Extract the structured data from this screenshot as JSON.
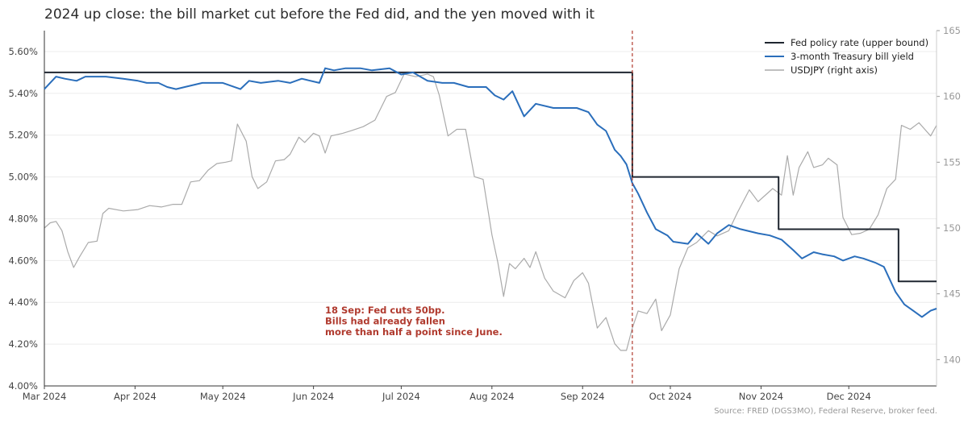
{
  "title": "2024 up close: the bill market cut before the Fed did, and the yen moved with it",
  "source": "Source: FRED (DGS3MO), Federal Reserve, broker feed.",
  "chart_data": {
    "type": "line",
    "x_ticks": [
      "Mar 2024",
      "Apr 2024",
      "May 2024",
      "Jun 2024",
      "Jul 2024",
      "Aug 2024",
      "Sep 2024",
      "Oct 2024",
      "Nov 2024",
      "Dec 2024"
    ],
    "x_range": [
      "2024-03-01",
      "2024-12-31"
    ],
    "left_axis": {
      "ticks": [
        "4.00%",
        "4.20%",
        "4.40%",
        "4.60%",
        "4.80%",
        "5.00%",
        "5.20%",
        "5.40%",
        "5.60%"
      ],
      "ylim": [
        4.0,
        5.7
      ]
    },
    "right_axis": {
      "ticks": [
        "140",
        "145",
        "150",
        "155",
        "160",
        "165"
      ],
      "ylim": [
        138,
        165
      ]
    },
    "grid": "horizontal",
    "legend_position": "top-right",
    "series": [
      {
        "name": "Fed policy rate (upper bound)",
        "axis": "left",
        "color": "#1f2630",
        "style": "step",
        "points": [
          [
            "2024-03-01",
            5.5
          ],
          [
            "2024-09-18",
            5.0
          ],
          [
            "2024-11-07",
            4.75
          ],
          [
            "2024-12-18",
            4.5
          ],
          [
            "2024-12-31",
            4.5
          ]
        ]
      },
      {
        "name": "3-month Treasury bill yield",
        "axis": "left",
        "color": "#2a6ebb",
        "style": "line",
        "points": [
          [
            "2024-03-01",
            5.42
          ],
          [
            "2024-03-05",
            5.48
          ],
          [
            "2024-03-08",
            5.47
          ],
          [
            "2024-03-12",
            5.46
          ],
          [
            "2024-03-15",
            5.48
          ],
          [
            "2024-03-22",
            5.48
          ],
          [
            "2024-03-28",
            5.47
          ],
          [
            "2024-04-02",
            5.46
          ],
          [
            "2024-04-05",
            5.45
          ],
          [
            "2024-04-09",
            5.45
          ],
          [
            "2024-04-12",
            5.43
          ],
          [
            "2024-04-15",
            5.42
          ],
          [
            "2024-04-18",
            5.43
          ],
          [
            "2024-04-24",
            5.45
          ],
          [
            "2024-05-01",
            5.45
          ],
          [
            "2024-05-07",
            5.42
          ],
          [
            "2024-05-10",
            5.46
          ],
          [
            "2024-05-14",
            5.45
          ],
          [
            "2024-05-20",
            5.46
          ],
          [
            "2024-05-24",
            5.45
          ],
          [
            "2024-05-28",
            5.47
          ],
          [
            "2024-06-03",
            5.45
          ],
          [
            "2024-06-05",
            5.52
          ],
          [
            "2024-06-08",
            5.51
          ],
          [
            "2024-06-12",
            5.52
          ],
          [
            "2024-06-17",
            5.52
          ],
          [
            "2024-06-21",
            5.51
          ],
          [
            "2024-06-27",
            5.52
          ],
          [
            "2024-07-01",
            5.49
          ],
          [
            "2024-07-05",
            5.5
          ],
          [
            "2024-07-10",
            5.46
          ],
          [
            "2024-07-15",
            5.45
          ],
          [
            "2024-07-19",
            5.45
          ],
          [
            "2024-07-24",
            5.43
          ],
          [
            "2024-07-30",
            5.43
          ],
          [
            "2024-08-02",
            5.39
          ],
          [
            "2024-08-05",
            5.37
          ],
          [
            "2024-08-08",
            5.41
          ],
          [
            "2024-08-12",
            5.29
          ],
          [
            "2024-08-16",
            5.35
          ],
          [
            "2024-08-22",
            5.33
          ],
          [
            "2024-08-26",
            5.33
          ],
          [
            "2024-08-30",
            5.33
          ],
          [
            "2024-09-03",
            5.31
          ],
          [
            "2024-09-06",
            5.25
          ],
          [
            "2024-09-09",
            5.22
          ],
          [
            "2024-09-12",
            5.13
          ],
          [
            "2024-09-14",
            5.1
          ],
          [
            "2024-09-16",
            5.06
          ],
          [
            "2024-09-18",
            4.97
          ],
          [
            "2024-09-20",
            4.92
          ],
          [
            "2024-09-23",
            4.83
          ],
          [
            "2024-09-26",
            4.75
          ],
          [
            "2024-09-30",
            4.72
          ],
          [
            "2024-10-02",
            4.69
          ],
          [
            "2024-10-07",
            4.68
          ],
          [
            "2024-10-10",
            4.73
          ],
          [
            "2024-10-14",
            4.68
          ],
          [
            "2024-10-17",
            4.73
          ],
          [
            "2024-10-21",
            4.77
          ],
          [
            "2024-10-25",
            4.75
          ],
          [
            "2024-10-31",
            4.73
          ],
          [
            "2024-11-04",
            4.72
          ],
          [
            "2024-11-08",
            4.7
          ],
          [
            "2024-11-12",
            4.65
          ],
          [
            "2024-11-15",
            4.61
          ],
          [
            "2024-11-19",
            4.64
          ],
          [
            "2024-11-22",
            4.63
          ],
          [
            "2024-11-26",
            4.62
          ],
          [
            "2024-11-29",
            4.6
          ],
          [
            "2024-12-03",
            4.62
          ],
          [
            "2024-12-06",
            4.61
          ],
          [
            "2024-12-10",
            4.59
          ],
          [
            "2024-12-13",
            4.57
          ],
          [
            "2024-12-17",
            4.45
          ],
          [
            "2024-12-20",
            4.39
          ],
          [
            "2024-12-23",
            4.36
          ],
          [
            "2024-12-26",
            4.33
          ],
          [
            "2024-12-29",
            4.36
          ],
          [
            "2024-12-31",
            4.37
          ]
        ]
      },
      {
        "name": "USDJPY (right axis)",
        "axis": "right",
        "color": "#aaaaaa",
        "style": "line",
        "points": [
          [
            "2024-03-01",
            150.0
          ],
          [
            "2024-03-03",
            150.4
          ],
          [
            "2024-03-05",
            150.5
          ],
          [
            "2024-03-07",
            149.8
          ],
          [
            "2024-03-09",
            148.2
          ],
          [
            "2024-03-11",
            147.0
          ],
          [
            "2024-03-13",
            147.8
          ],
          [
            "2024-03-16",
            148.9
          ],
          [
            "2024-03-19",
            149.0
          ],
          [
            "2024-03-21",
            151.1
          ],
          [
            "2024-03-23",
            151.5
          ],
          [
            "2024-03-28",
            151.3
          ],
          [
            "2024-04-02",
            151.4
          ],
          [
            "2024-04-06",
            151.7
          ],
          [
            "2024-04-10",
            151.6
          ],
          [
            "2024-04-14",
            151.8
          ],
          [
            "2024-04-17",
            151.8
          ],
          [
            "2024-04-20",
            153.5
          ],
          [
            "2024-04-23",
            153.6
          ],
          [
            "2024-04-26",
            154.4
          ],
          [
            "2024-04-29",
            154.9
          ],
          [
            "2024-05-02",
            155.0
          ],
          [
            "2024-05-04",
            155.1
          ],
          [
            "2024-05-06",
            157.9
          ],
          [
            "2024-05-09",
            156.6
          ],
          [
            "2024-05-11",
            153.9
          ],
          [
            "2024-05-13",
            153.0
          ],
          [
            "2024-05-16",
            153.5
          ],
          [
            "2024-05-19",
            155.1
          ],
          [
            "2024-05-22",
            155.2
          ],
          [
            "2024-05-24",
            155.6
          ],
          [
            "2024-05-27",
            156.9
          ],
          [
            "2024-05-29",
            156.5
          ],
          [
            "2024-06-01",
            157.2
          ],
          [
            "2024-06-03",
            157.0
          ],
          [
            "2024-06-05",
            155.7
          ],
          [
            "2024-06-07",
            157.0
          ],
          [
            "2024-06-11",
            157.2
          ],
          [
            "2024-06-14",
            157.4
          ],
          [
            "2024-06-18",
            157.7
          ],
          [
            "2024-06-22",
            158.2
          ],
          [
            "2024-06-26",
            160.0
          ],
          [
            "2024-06-29",
            160.3
          ],
          [
            "2024-07-02",
            161.7
          ],
          [
            "2024-07-06",
            161.5
          ],
          [
            "2024-07-10",
            161.7
          ],
          [
            "2024-07-12",
            161.5
          ],
          [
            "2024-07-14",
            160.1
          ],
          [
            "2024-07-17",
            157.0
          ],
          [
            "2024-07-20",
            157.5
          ],
          [
            "2024-07-23",
            157.5
          ],
          [
            "2024-07-26",
            153.9
          ],
          [
            "2024-07-29",
            153.7
          ],
          [
            "2024-08-01",
            149.5
          ],
          [
            "2024-08-03",
            147.4
          ],
          [
            "2024-08-05",
            144.8
          ],
          [
            "2024-08-07",
            147.3
          ],
          [
            "2024-08-09",
            146.9
          ],
          [
            "2024-08-12",
            147.7
          ],
          [
            "2024-08-14",
            147.0
          ],
          [
            "2024-08-16",
            148.2
          ],
          [
            "2024-08-19",
            146.2
          ],
          [
            "2024-08-22",
            145.2
          ],
          [
            "2024-08-26",
            144.7
          ],
          [
            "2024-08-29",
            146.0
          ],
          [
            "2024-09-01",
            146.6
          ],
          [
            "2024-09-03",
            145.8
          ],
          [
            "2024-09-06",
            142.4
          ],
          [
            "2024-09-09",
            143.2
          ],
          [
            "2024-09-12",
            141.2
          ],
          [
            "2024-09-14",
            140.7
          ],
          [
            "2024-09-16",
            140.7
          ],
          [
            "2024-09-18",
            142.4
          ],
          [
            "2024-09-20",
            143.7
          ],
          [
            "2024-09-23",
            143.5
          ],
          [
            "2024-09-26",
            144.6
          ],
          [
            "2024-09-28",
            142.2
          ],
          [
            "2024-10-01",
            143.4
          ],
          [
            "2024-10-04",
            146.9
          ],
          [
            "2024-10-07",
            148.5
          ],
          [
            "2024-10-10",
            148.9
          ],
          [
            "2024-10-14",
            149.8
          ],
          [
            "2024-10-17",
            149.4
          ],
          [
            "2024-10-21",
            149.8
          ],
          [
            "2024-10-24",
            151.2
          ],
          [
            "2024-10-28",
            152.9
          ],
          [
            "2024-10-31",
            152.0
          ],
          [
            "2024-11-03",
            152.6
          ],
          [
            "2024-11-05",
            153.0
          ],
          [
            "2024-11-08",
            152.5
          ],
          [
            "2024-11-10",
            155.5
          ],
          [
            "2024-11-12",
            152.5
          ],
          [
            "2024-11-14",
            154.6
          ],
          [
            "2024-11-17",
            155.8
          ],
          [
            "2024-11-19",
            154.6
          ],
          [
            "2024-11-22",
            154.8
          ],
          [
            "2024-11-24",
            155.3
          ],
          [
            "2024-11-27",
            154.8
          ],
          [
            "2024-11-29",
            150.8
          ],
          [
            "2024-12-02",
            149.5
          ],
          [
            "2024-12-05",
            149.6
          ],
          [
            "2024-12-08",
            149.9
          ],
          [
            "2024-12-11",
            151.0
          ],
          [
            "2024-12-14",
            153.0
          ],
          [
            "2024-12-17",
            153.7
          ],
          [
            "2024-12-19",
            157.8
          ],
          [
            "2024-12-22",
            157.5
          ],
          [
            "2024-12-25",
            158.0
          ],
          [
            "2024-12-29",
            157.0
          ],
          [
            "2024-12-31",
            157.8
          ]
        ]
      }
    ],
    "annotations": [
      {
        "text": [
          "18 Sep: Fed cuts 50bp.",
          "Bills had already fallen",
          "more than half a point since June."
        ],
        "color": "#b03a2e"
      }
    ],
    "vertical_marker": {
      "date": "2024-09-18",
      "color": "#b03a2e",
      "style": "dashed"
    }
  }
}
